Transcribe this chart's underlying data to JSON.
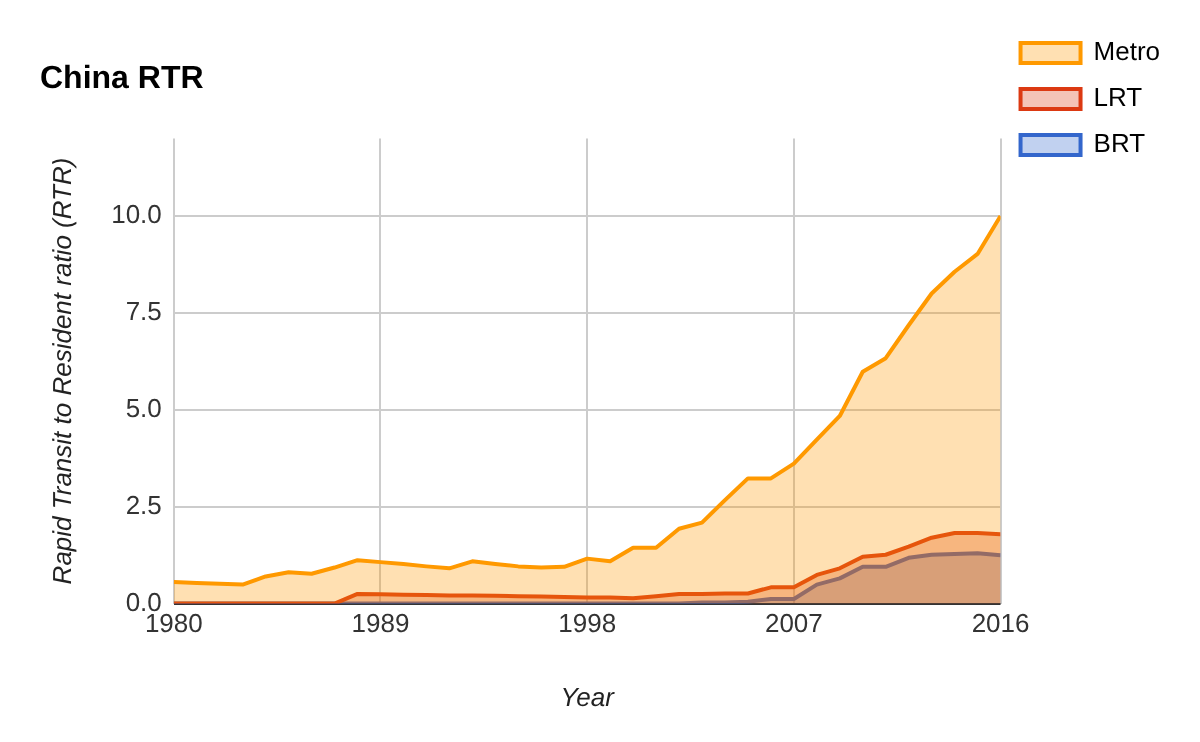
{
  "chart_data": {
    "type": "area",
    "title": "China RTR",
    "xlabel": "Year",
    "ylabel": "Rapid Transit to Resident ratio (RTR)",
    "x": [
      1980,
      1981,
      1982,
      1983,
      1984,
      1985,
      1986,
      1987,
      1988,
      1989,
      1990,
      1991,
      1992,
      1993,
      1994,
      1995,
      1996,
      1997,
      1998,
      1999,
      2000,
      2001,
      2002,
      2003,
      2004,
      2005,
      2006,
      2007,
      2008,
      2009,
      2010,
      2011,
      2012,
      2013,
      2014,
      2015,
      2016
    ],
    "series": [
      {
        "name": "Metro",
        "color": "#ff9900",
        "values": [
          0.56,
          0.53,
          0.51,
          0.49,
          0.7,
          0.81,
          0.77,
          0.93,
          1.12,
          1.07,
          1.02,
          0.96,
          0.91,
          1.09,
          1.02,
          0.96,
          0.93,
          0.95,
          1.16,
          1.09,
          1.44,
          1.44,
          1.93,
          2.09,
          2.67,
          3.23,
          3.23,
          3.61,
          4.23,
          4.84,
          5.98,
          6.33,
          7.18,
          8.0,
          8.56,
          9.02,
          10.0
        ]
      },
      {
        "name": "LRT",
        "color": "#dc3912",
        "values": [
          0,
          0,
          0,
          0,
          0,
          0,
          0,
          0,
          0.25,
          0.24,
          0.23,
          0.22,
          0.21,
          0.21,
          0.2,
          0.19,
          0.18,
          0.17,
          0.16,
          0.16,
          0.14,
          0.19,
          0.25,
          0.25,
          0.26,
          0.26,
          0.42,
          0.42,
          0.74,
          0.91,
          1.21,
          1.26,
          1.47,
          1.7,
          1.82,
          1.82,
          1.79
        ]
      },
      {
        "name": "BRT",
        "color": "#3366cc",
        "values": [
          0,
          0,
          0,
          0,
          0,
          0,
          0,
          0,
          0,
          0,
          0,
          0,
          0,
          0,
          0,
          0,
          0,
          0,
          0,
          0,
          0,
          0,
          0,
          0.03,
          0.03,
          0.05,
          0.12,
          0.12,
          0.49,
          0.65,
          0.95,
          0.95,
          1.18,
          1.26,
          1.28,
          1.3,
          1.25
        ]
      }
    ],
    "xlim": [
      1980,
      2016
    ],
    "xticks": [
      1980,
      1989,
      1998,
      2007,
      2016
    ],
    "ylim": [
      0,
      12
    ],
    "yticks": [
      {
        "value": 0,
        "label": "0.0"
      },
      {
        "value": 2.5,
        "label": "2.5"
      },
      {
        "value": 5,
        "label": "5.0"
      },
      {
        "value": 7.5,
        "label": "7.5"
      },
      {
        "value": 10,
        "label": "10.0"
      }
    ],
    "grid": true,
    "legend": "right",
    "marker": "none"
  }
}
